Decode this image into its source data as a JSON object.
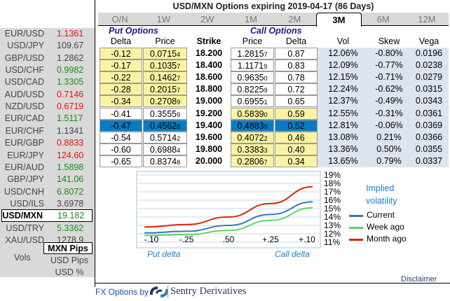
{
  "title": "USD/MXN Options expiring 2019-04-17 (86 Days)",
  "tabs": [
    "O/N",
    "1W",
    "2W",
    "1M",
    "2M",
    "3M",
    "6M",
    "12M"
  ],
  "active_tab": "3M",
  "left_panel": {
    "rates": [
      {
        "pair": "EUR/USD",
        "value": "1.1361",
        "dir": "down"
      },
      {
        "pair": "USD/JPY",
        "value": "109.67",
        "dir": "none"
      },
      {
        "pair": "GBP/USD",
        "value": "1.2862",
        "dir": "none"
      },
      {
        "pair": "USD/CHF",
        "value": "0.9982",
        "dir": "up"
      },
      {
        "pair": "USD/CAD",
        "value": "1.3305",
        "dir": "up"
      },
      {
        "pair": "AUD/USD",
        "value": "0.7146",
        "dir": "down"
      },
      {
        "pair": "NZD/USD",
        "value": "0.6719",
        "dir": "down"
      },
      {
        "pair": "EUR/CAD",
        "value": "1.5117",
        "dir": "up"
      },
      {
        "pair": "EUR/CHF",
        "value": "1.1341",
        "dir": "none"
      },
      {
        "pair": "EUR/GBP",
        "value": "0.8833",
        "dir": "down"
      },
      {
        "pair": "EUR/JPY",
        "value": "124.60",
        "dir": "down"
      },
      {
        "pair": "EUR/AUD",
        "value": "1.5898",
        "dir": "up"
      },
      {
        "pair": "GBP/JPY",
        "value": "141.06",
        "dir": "up"
      },
      {
        "pair": "USD/CNH",
        "value": "6.8072",
        "dir": "up"
      },
      {
        "pair": "USD/ILS",
        "value": "3.6978",
        "dir": "none"
      },
      {
        "pair": "USD/MXN",
        "value": "19.182",
        "dir": "up",
        "selected": true
      },
      {
        "pair": "USD/TRY",
        "value": "5.3362",
        "dir": "up"
      },
      {
        "pair": "XAU/USD",
        "value": "1278.9",
        "dir": "none"
      }
    ],
    "vols_label": "Vols",
    "units": [
      "MXN Pips",
      "USD Pips",
      "USD %"
    ],
    "selected_unit": "MXN Pips"
  },
  "groups": {
    "put": "Put Options",
    "call": "Call Options"
  },
  "headers": [
    "Delta",
    "Price",
    "Strike",
    "Price",
    "Delta",
    "Vol",
    "Skew",
    "Vega"
  ],
  "rows": [
    {
      "put_delta": "-0.12",
      "put_price": "0.07154",
      "strike": "18.200",
      "call_price": "1.28157",
      "call_delta": "0.87",
      "vol": "12.06%",
      "skew": "-0.80%",
      "vega": "0.0196",
      "put_itm": true,
      "call_itm": false
    },
    {
      "put_delta": "-0.17",
      "put_price": "0.10357",
      "strike": "18.400",
      "call_price": "1.11719",
      "call_delta": "0.83",
      "vol": "12.09%",
      "skew": "-0.77%",
      "vega": "0.0238",
      "put_itm": true,
      "call_itm": false
    },
    {
      "put_delta": "-0.22",
      "put_price": "0.14627",
      "strike": "18.600",
      "call_price": "0.96350",
      "call_delta": "0.78",
      "vol": "12.15%",
      "skew": "-0.71%",
      "vega": "0.0279",
      "put_itm": true,
      "call_itm": false
    },
    {
      "put_delta": "-0.28",
      "put_price": "0.20157",
      "strike": "18.800",
      "call_price": "0.82259",
      "call_delta": "0.72",
      "vol": "12.24%",
      "skew": "-0.62%",
      "vega": "0.0315",
      "put_itm": true,
      "call_itm": false
    },
    {
      "put_delta": "-0.34",
      "put_price": "0.27089",
      "strike": "19.000",
      "call_price": "0.69551",
      "call_delta": "0.65",
      "vol": "12.37%",
      "skew": "-0.49%",
      "vega": "0.0343",
      "put_itm": true,
      "call_itm": false
    },
    {
      "put_delta": "-0.41",
      "put_price": "0.35559",
      "strike": "19.200",
      "call_price": "0.58390",
      "call_delta": "0.59",
      "vol": "12.55%",
      "skew": "-0.31%",
      "vega": "0.0361",
      "put_itm": false,
      "call_itm": true
    },
    {
      "put_delta": "-0.47",
      "put_price": "0.45628",
      "strike": "19.400",
      "call_price": "0.48839",
      "call_delta": "0.52",
      "vol": "12.81%",
      "skew": "-0.06%",
      "vega": "0.0369",
      "put_itm": false,
      "call_itm": true,
      "selected": true
    },
    {
      "put_delta": "-0.54",
      "put_price": "0.57142",
      "strike": "19.600",
      "call_price": "0.40722",
      "call_delta": "0.46",
      "vol": "13.08%",
      "skew": "0.21%",
      "vega": "0.0366",
      "put_itm": false,
      "call_itm": true
    },
    {
      "put_delta": "-0.60",
      "put_price": "0.69884",
      "strike": "19.800",
      "call_price": "0.33833",
      "call_delta": "0.40",
      "vol": "13.36%",
      "skew": "0.50%",
      "vega": "0.0355",
      "put_itm": false,
      "call_itm": true
    },
    {
      "put_delta": "-0.65",
      "put_price": "0.83748",
      "strike": "20.000",
      "call_price": "0.28067",
      "call_delta": "0.34",
      "vol": "13.65%",
      "skew": "0.79%",
      "vega": "0.0337",
      "put_itm": false,
      "call_itm": true
    }
  ],
  "chart_data": {
    "type": "line",
    "categories": [
      "-.10",
      "-.25",
      ".50",
      "+.25",
      "+.10"
    ],
    "xlabel_left": "Put delta",
    "xlabel_right": "Call delta",
    "yticks": [
      "19%",
      "18%",
      "17%",
      "16%",
      "15%",
      "14%",
      "13%",
      "12%",
      "11%"
    ],
    "ylim": [
      11,
      19
    ],
    "legend_title": [
      "Implied",
      "volatility"
    ],
    "legend_position": "right",
    "grid": true,
    "series": [
      {
        "name": "Current",
        "color": "#3a78b5",
        "values": [
          12.1,
          12.3,
          13.0,
          14.3,
          15.8
        ]
      },
      {
        "name": "Week ago",
        "color": "#5cd65c",
        "values": [
          11.8,
          11.9,
          12.4,
          13.6,
          15.1
        ]
      },
      {
        "name": "Month ago",
        "color": "#d42a0a",
        "values": [
          12.8,
          13.1,
          14.0,
          15.6,
          17.6
        ]
      }
    ]
  },
  "colors": {
    "itm": "#faf3a3",
    "selected": "#0a7bc1",
    "vol_bg": "#dde4ef"
  },
  "footer": {
    "prefix": "FX Options by",
    "brand": "Sentry Derivatives",
    "disclaimer": "Disclaimer"
  }
}
